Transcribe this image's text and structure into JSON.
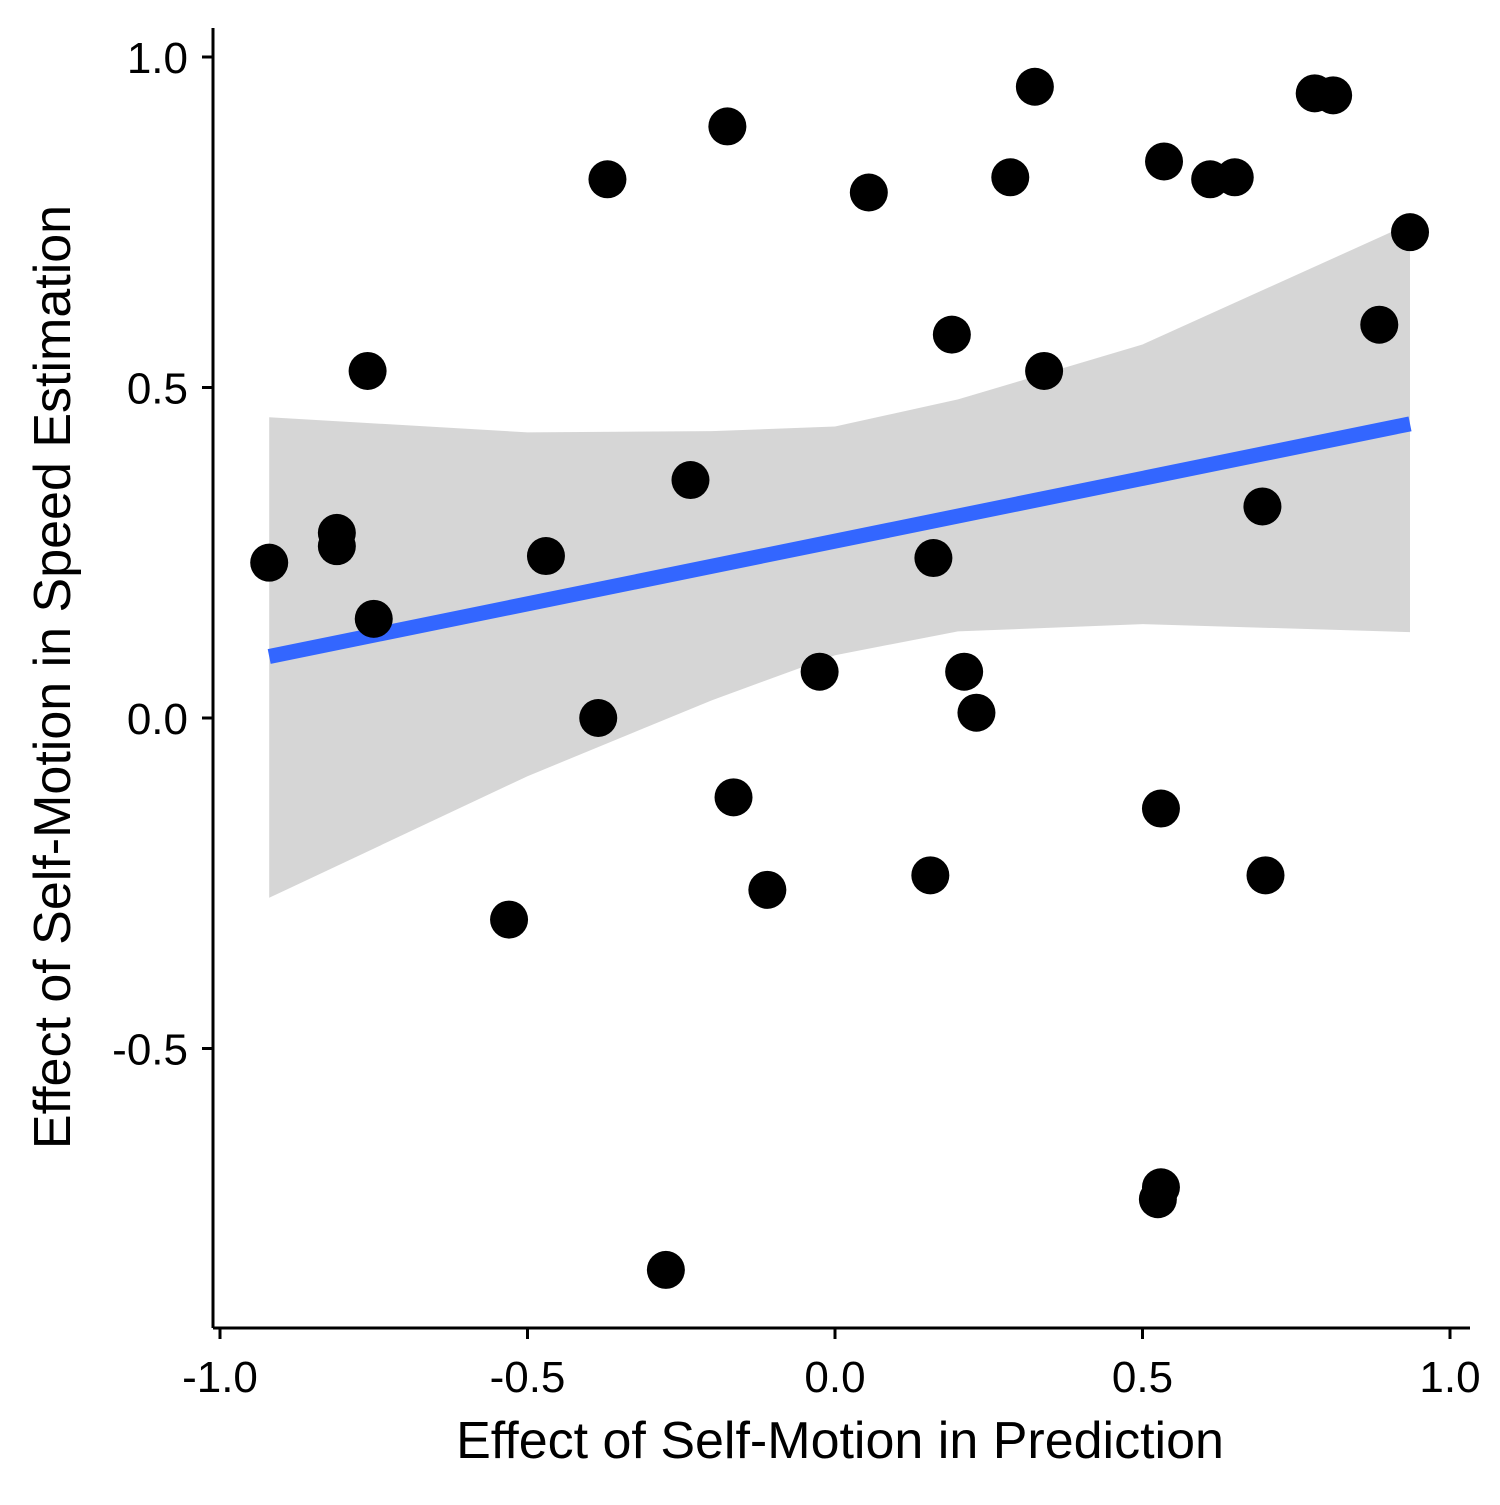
{
  "chart_data": {
    "type": "scatter",
    "title": "",
    "xlabel": "Effect of Self-Motion in Prediction",
    "ylabel": "Effect of Self-Motion in Speed Estimation",
    "xlim": [
      -1.0,
      1.02
    ],
    "ylim": [
      -0.92,
      1.02
    ],
    "x_ticks": [
      -1.0,
      -0.5,
      0.0,
      0.5,
      1.0
    ],
    "x_tick_labels": [
      "-1.0",
      "-0.5",
      "0.0",
      "0.5",
      "1.0"
    ],
    "y_ticks": [
      -0.5,
      0.0,
      0.5,
      1.0
    ],
    "y_tick_labels": [
      "-0.5",
      "0.0",
      "0.5",
      "1.0"
    ],
    "grid": false,
    "legend": "none",
    "point_color": "#000000",
    "line_color": "#3366FF",
    "band_color": "#999999",
    "points": [
      {
        "x": -0.92,
        "y": 0.235
      },
      {
        "x": -0.81,
        "y": 0.28
      },
      {
        "x": -0.81,
        "y": 0.26
      },
      {
        "x": -0.76,
        "y": 0.525
      },
      {
        "x": -0.75,
        "y": 0.15
      },
      {
        "x": -0.53,
        "y": -0.305
      },
      {
        "x": -0.47,
        "y": 0.245
      },
      {
        "x": -0.385,
        "y": 0.0
      },
      {
        "x": -0.37,
        "y": 0.815
      },
      {
        "x": -0.275,
        "y": -0.835
      },
      {
        "x": -0.235,
        "y": 0.36
      },
      {
        "x": -0.175,
        "y": 0.895
      },
      {
        "x": -0.165,
        "y": -0.12
      },
      {
        "x": -0.11,
        "y": -0.26
      },
      {
        "x": -0.025,
        "y": 0.07
      },
      {
        "x": 0.055,
        "y": 0.795
      },
      {
        "x": 0.155,
        "y": -0.238
      },
      {
        "x": 0.16,
        "y": 0.242
      },
      {
        "x": 0.19,
        "y": 0.58
      },
      {
        "x": 0.21,
        "y": 0.07
      },
      {
        "x": 0.23,
        "y": 0.008
      },
      {
        "x": 0.285,
        "y": 0.818
      },
      {
        "x": 0.325,
        "y": 0.955
      },
      {
        "x": 0.34,
        "y": 0.525
      },
      {
        "x": 0.525,
        "y": -0.728
      },
      {
        "x": 0.53,
        "y": -0.71
      },
      {
        "x": 0.53,
        "y": -0.137
      },
      {
        "x": 0.535,
        "y": 0.842
      },
      {
        "x": 0.61,
        "y": 0.815
      },
      {
        "x": 0.65,
        "y": 0.818
      },
      {
        "x": 0.695,
        "y": 0.32
      },
      {
        "x": 0.7,
        "y": -0.238
      },
      {
        "x": 0.78,
        "y": 0.945
      },
      {
        "x": 0.81,
        "y": 0.942
      },
      {
        "x": 0.885,
        "y": 0.595
      },
      {
        "x": 0.935,
        "y": 0.735
      }
    ],
    "fit_line": {
      "x": [
        -0.92,
        0.935
      ],
      "y": [
        0.093,
        0.445
      ]
    },
    "confidence_band": {
      "x": [
        -0.92,
        -0.5,
        -0.2,
        0.0,
        0.2,
        0.5,
        0.935
      ],
      "upper": [
        0.455,
        0.432,
        0.434,
        0.441,
        0.482,
        0.565,
        0.748
      ],
      "lower": [
        -0.272,
        -0.088,
        0.027,
        0.095,
        0.131,
        0.142,
        0.13
      ]
    }
  }
}
